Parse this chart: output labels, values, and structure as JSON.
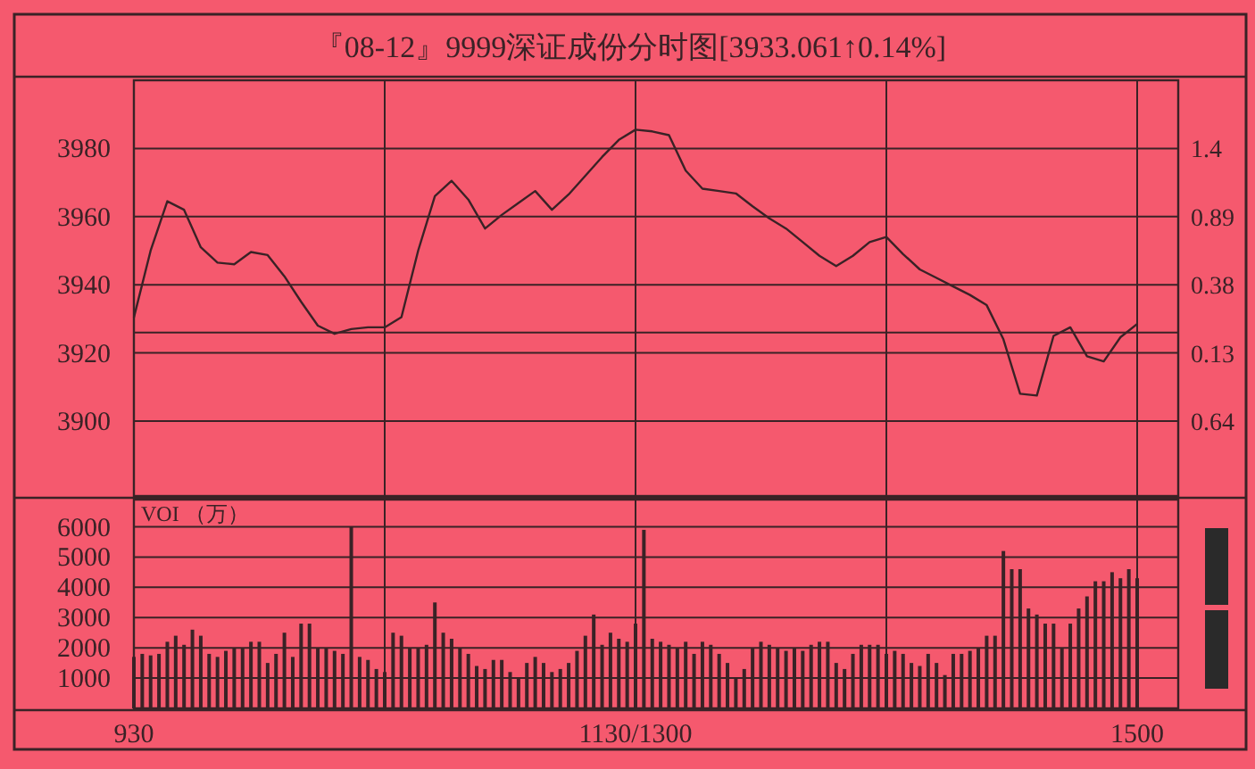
{
  "chart_data": [
    {
      "type": "line",
      "title": "『08-12』9999深证成份分时图[3933.061↑0.14%]",
      "categories": [
        null,
        null,
        null,
        null,
        null,
        null,
        null,
        null,
        null,
        null,
        null,
        null,
        null,
        null,
        null,
        null,
        null,
        null,
        null,
        null,
        null,
        null,
        null,
        null,
        null,
        null,
        null,
        null,
        null,
        null,
        null,
        null,
        null,
        null,
        null,
        null,
        null,
        null,
        null,
        null,
        null,
        null,
        null,
        null,
        null,
        null,
        null,
        null,
        null,
        null,
        null,
        null,
        null,
        null,
        null,
        null,
        null,
        null,
        null,
        null,
        null
      ],
      "ylim": [
        3878,
        4000
      ],
      "yticks": [
        3900,
        3920,
        3940,
        3960,
        3980
      ],
      "y2lim": [
        -1.2,
        1.91
      ],
      "y2ticks": [
        {
          "value": -0.64,
          "label": "0.64"
        },
        {
          "value": -0.13,
          "label": "0.13"
        },
        0.38,
        0.89,
        1.4
      ],
      "tick_labels": "y",
      "grid": true,
      "ref_lines": [
        {
          "axis": "y",
          "value": 3926,
          "label": null
        }
      ],
      "series": [
        {
          "color": "#3a2226",
          "values": [
            3930.4,
            3950,
            3964.5,
            3962,
            3951,
            3946.5,
            3946,
            3949.6,
            3948.7,
            3942.5,
            3935,
            3928,
            3925.6,
            3927,
            3927.5,
            3927.5,
            3930.5,
            3950,
            3966,
            3970.5,
            3965,
            3956.5,
            3960.5,
            3964,
            3967.5,
            3962,
            3966.5,
            3972,
            3977.5,
            3982.5,
            3985.5,
            3985,
            3983.9,
            3973.5,
            3968.2,
            3967.5,
            3966.8,
            3963,
            3959.5,
            3956.5,
            3952.5,
            3948.5,
            3945.5,
            3948.5,
            3952.5,
            3954,
            3949,
            3944.5,
            3942,
            3939.5,
            3937,
            3934,
            3924,
            3908,
            3907.5,
            3925,
            3927.5,
            3919,
            3917.5,
            3924.6,
            3928.5
          ]
        }
      ]
    },
    {
      "type": "bar",
      "ylabel": "VOI （万）",
      "categories": [
        "930",
        null,
        null,
        null,
        null,
        null,
        null,
        null,
        null,
        null,
        null,
        null,
        null,
        null,
        null,
        null,
        null,
        null,
        null,
        null,
        null,
        null,
        null,
        null,
        null,
        null,
        null,
        null,
        null,
        null,
        null,
        null,
        null,
        null,
        null,
        null,
        null,
        null,
        null,
        null,
        null,
        null,
        null,
        null,
        null,
        null,
        null,
        null,
        null,
        null,
        null,
        null,
        null,
        null,
        null,
        null,
        null,
        null,
        null,
        null,
        "1130/1300",
        null,
        null,
        null,
        null,
        null,
        null,
        null,
        null,
        null,
        null,
        null,
        null,
        null,
        null,
        null,
        null,
        null,
        null,
        null,
        null,
        null,
        null,
        null,
        null,
        null,
        null,
        null,
        null,
        null,
        null,
        null,
        null,
        null,
        null,
        null,
        null,
        null,
        null,
        null,
        null,
        null,
        null,
        null,
        null,
        null,
        null,
        null,
        null,
        null,
        null,
        null,
        null,
        null,
        null,
        null,
        null,
        null,
        null,
        null,
        "1500"
      ],
      "ylim": [
        0,
        6900
      ],
      "yticks": [
        1000,
        2000,
        3000,
        4000,
        5000,
        6000
      ],
      "grid": true,
      "series": [
        {
          "color": "#3a2226",
          "values": [
            1700,
            1800,
            1750,
            1800,
            2200,
            2400,
            2100,
            2600,
            2400,
            1800,
            1700,
            1900,
            2000,
            2000,
            2200,
            2200,
            1500,
            1800,
            2500,
            1700,
            2800,
            2800,
            2000,
            2000,
            1900,
            1800,
            6000,
            1700,
            1600,
            1300,
            1200,
            2500,
            2400,
            2000,
            2000,
            2100,
            3500,
            2500,
            2300,
            2000,
            1800,
            1400,
            1300,
            1600,
            1600,
            1200,
            1000,
            1500,
            1700,
            1500,
            1200,
            1300,
            1500,
            1900,
            2400,
            3100,
            2100,
            2500,
            2300,
            2200,
            2800,
            5900,
            2300,
            2200,
            2100,
            2000,
            2200,
            1800,
            2200,
            2100,
            1800,
            1500,
            1000,
            1300,
            2000,
            2200,
            2100,
            2000,
            1900,
            2000,
            1900,
            2100,
            2200,
            2200,
            1500,
            1300,
            1800,
            2100,
            2100,
            2100,
            1800,
            1900,
            1800,
            1500,
            1400,
            1800,
            1500,
            1100,
            1800,
            1800,
            1900,
            2000,
            2400,
            2400,
            5200,
            4600,
            4600,
            3300,
            3100,
            2800,
            2800,
            2000,
            2800,
            3300,
            3700,
            4200,
            4200,
            4500,
            4300,
            4600,
            4300
          ]
        }
      ]
    }
  ]
}
